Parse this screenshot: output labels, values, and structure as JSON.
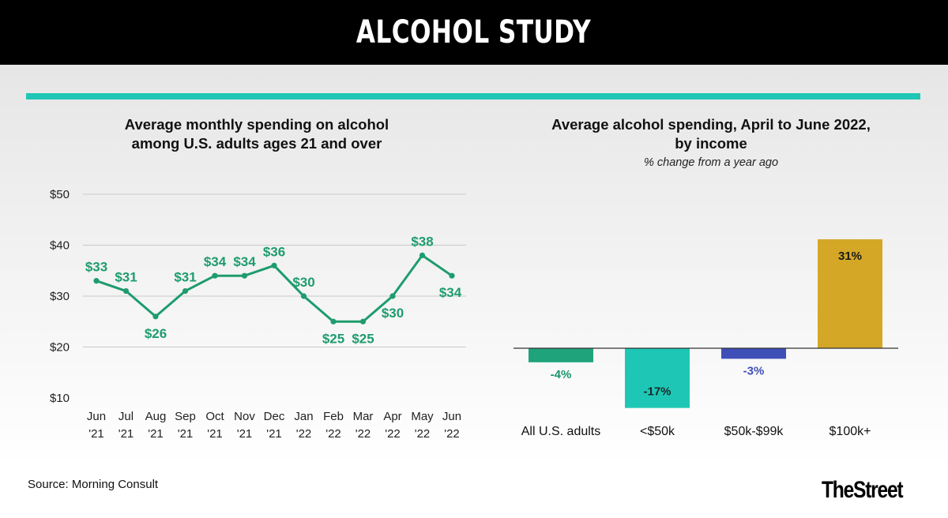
{
  "header": {
    "title": "ALCOHOL STUDY"
  },
  "footer": {
    "source": "Source: Morning Consult",
    "brand": "TheStreet"
  },
  "colors": {
    "line": "#1e9c6e",
    "accent_rule": "#1ec7b5"
  },
  "chart_data": [
    {
      "type": "line",
      "title_line1": "Average monthly spending on alcohol",
      "title_line2": "among U.S. adults ages 21 and over",
      "categories_line1": [
        "Jun",
        "Jul",
        "Aug",
        "Sep",
        "Oct",
        "Nov",
        "Dec",
        "Jan",
        "Feb",
        "Mar",
        "Apr",
        "May",
        "Jun"
      ],
      "categories_line2": [
        "'21",
        "'21",
        "'21",
        "'21",
        "'21",
        "'21",
        "'21",
        "'22",
        "'22",
        "'22",
        "'22",
        "'22",
        "'22"
      ],
      "values": [
        33,
        31,
        26,
        31,
        34,
        34,
        36,
        30,
        25,
        25,
        30,
        38,
        34
      ],
      "data_labels": [
        "$33",
        "$31",
        "$26",
        "$31",
        "$34",
        "$34",
        "$36",
        "$30",
        "$25",
        "$25",
        "$30",
        "$38",
        "$34"
      ],
      "label_positions": [
        "above",
        "above",
        "below",
        "above",
        "above",
        "above",
        "above",
        "above",
        "below",
        "below",
        "below",
        "above",
        "below"
      ],
      "yticks": [
        10,
        20,
        30,
        40,
        50
      ],
      "ytick_labels": [
        "$10",
        "$20",
        "$30",
        "$40",
        "$50"
      ],
      "ylim": [
        10,
        50
      ],
      "grid": true,
      "color": "#1e9c6e"
    },
    {
      "type": "bar",
      "title_line1": "Average alcohol spending, April to June 2022,",
      "title_line2": "by income",
      "subtitle": "% change from a year ago",
      "categories": [
        "All U.S. adults",
        "<$50k",
        "$50k-$99k",
        "$100k+"
      ],
      "values": [
        -4,
        -17,
        -3,
        31
      ],
      "data_labels": [
        "-4%",
        "-17%",
        "-3%",
        "31%"
      ],
      "colors": [
        "#1fa37a",
        "#1ec7b5",
        "#3f4fb8",
        "#d4a726"
      ],
      "label_colors": [
        "#1a9468",
        "#1a2a2a",
        "#3f4fb8",
        "#1a1a1a"
      ]
    }
  ]
}
